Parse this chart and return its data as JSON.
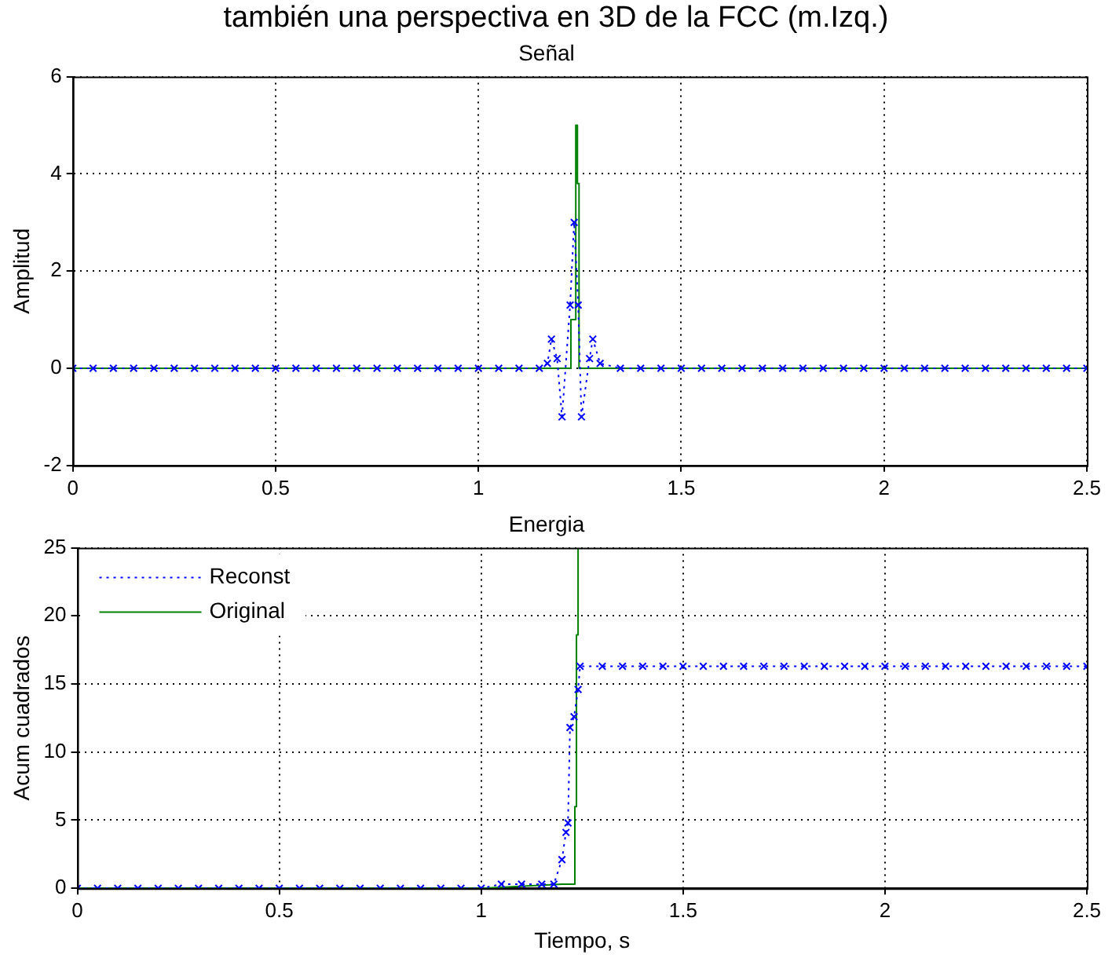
{
  "chart_data": [
    {
      "type": "line",
      "title": "Señal",
      "ylabel": "Amplitud",
      "annotations": [
        "también una perspectiva en 3D de la FCC (m.Izq.)"
      ],
      "xlim": [
        0,
        2.5
      ],
      "xticks": [
        0,
        0.5,
        1,
        1.5,
        2,
        2.5
      ],
      "ylim": [
        -2,
        6
      ],
      "yticks": [
        -2,
        0,
        2,
        4,
        6
      ],
      "grid": true,
      "legend": false,
      "series": [
        {
          "color": "#0000ff",
          "marker": "cross",
          "line_style": "dotted",
          "x": [
            0,
            0.05,
            0.1,
            0.15,
            0.2,
            0.25,
            0.3,
            0.35,
            0.4,
            0.45,
            0.5,
            0.55,
            0.6,
            0.65,
            0.7,
            0.75,
            0.8,
            0.85,
            0.9,
            0.95,
            1.0,
            1.05,
            1.1,
            1.15,
            1.17,
            1.18,
            1.194,
            1.206,
            1.226,
            1.236,
            1.246,
            1.254,
            1.274,
            1.282,
            1.3,
            1.35,
            1.4,
            1.45,
            1.5,
            1.55,
            1.6,
            1.65,
            1.7,
            1.75,
            1.8,
            1.85,
            1.9,
            1.95,
            2.0,
            2.05,
            2.1,
            2.15,
            2.2,
            2.25,
            2.3,
            2.35,
            2.4,
            2.45,
            2.5
          ],
          "values": [
            0,
            0,
            0,
            0,
            0,
            0,
            0,
            0,
            0,
            0,
            0,
            0,
            0,
            0,
            0,
            0,
            0,
            0,
            0,
            0,
            0,
            0,
            0,
            0,
            0.1,
            0.6,
            0.2,
            -1.0,
            1.3,
            3.0,
            1.3,
            -1.0,
            0.2,
            0.6,
            0.1,
            0,
            0,
            0,
            0,
            0,
            0,
            0,
            0,
            0,
            0,
            0,
            0,
            0,
            0,
            0,
            0,
            0,
            0,
            0,
            0,
            0,
            0,
            0,
            0
          ]
        },
        {
          "color": "#008000",
          "marker": "none",
          "line_style": "solid",
          "x": [
            0,
            1.228,
            1.228,
            1.24,
            1.24,
            1.244,
            1.244,
            1.248,
            1.248,
            2.5
          ],
          "values": [
            0,
            0,
            1,
            1,
            5,
            5,
            3.8,
            3.8,
            0,
            0
          ]
        }
      ]
    },
    {
      "type": "line",
      "title": "Energia",
      "xlabel": "Tiempo, s",
      "ylabel": "Acum cuadrados",
      "xlim": [
        0,
        2.5
      ],
      "xticks": [
        0,
        0.5,
        1,
        1.5,
        2,
        2.5
      ],
      "ylim": [
        0,
        25
      ],
      "yticks": [
        0,
        5,
        10,
        15,
        20,
        25
      ],
      "grid": true,
      "legend": "top left",
      "series": [
        {
          "name": "Reconst",
          "color": "#0000ff",
          "marker": "cross",
          "line_style": "dotted",
          "x": [
            0,
            0.05,
            0.1,
            0.15,
            0.2,
            0.25,
            0.3,
            0.35,
            0.4,
            0.45,
            0.5,
            0.55,
            0.6,
            0.65,
            0.7,
            0.75,
            0.8,
            0.85,
            0.9,
            0.95,
            1.0,
            1.05,
            1.1,
            1.15,
            1.18,
            1.2,
            1.21,
            1.215,
            1.22,
            1.23,
            1.24,
            1.245,
            1.3,
            1.35,
            1.4,
            1.45,
            1.5,
            1.55,
            1.6,
            1.65,
            1.7,
            1.75,
            1.8,
            1.85,
            1.9,
            1.95,
            2.0,
            2.05,
            2.1,
            2.15,
            2.2,
            2.25,
            2.3,
            2.35,
            2.4,
            2.45,
            2.5
          ],
          "values": [
            0,
            0,
            0,
            0,
            0,
            0,
            0,
            0,
            0,
            0,
            0,
            0,
            0,
            0,
            0,
            0,
            0,
            0,
            0,
            0,
            0,
            0.3,
            0.3,
            0.3,
            0.3,
            2.1,
            4.1,
            4.8,
            11.8,
            12.6,
            14.6,
            16.3,
            16.3,
            16.3,
            16.3,
            16.3,
            16.3,
            16.3,
            16.3,
            16.3,
            16.3,
            16.3,
            16.3,
            16.3,
            16.3,
            16.3,
            16.3,
            16.3,
            16.3,
            16.3,
            16.3,
            16.3,
            16.3,
            16.3,
            16.3,
            16.3,
            16.3
          ]
        },
        {
          "name": "Original",
          "color": "#008000",
          "marker": "none",
          "line_style": "solid",
          "x": [
            0,
            1.0,
            1.2,
            1.232,
            1.232,
            1.236,
            1.236,
            1.24,
            1.24
          ],
          "values": [
            0,
            0,
            0.3,
            0.3,
            6,
            6,
            18.6,
            18.6,
            25
          ]
        }
      ]
    }
  ]
}
